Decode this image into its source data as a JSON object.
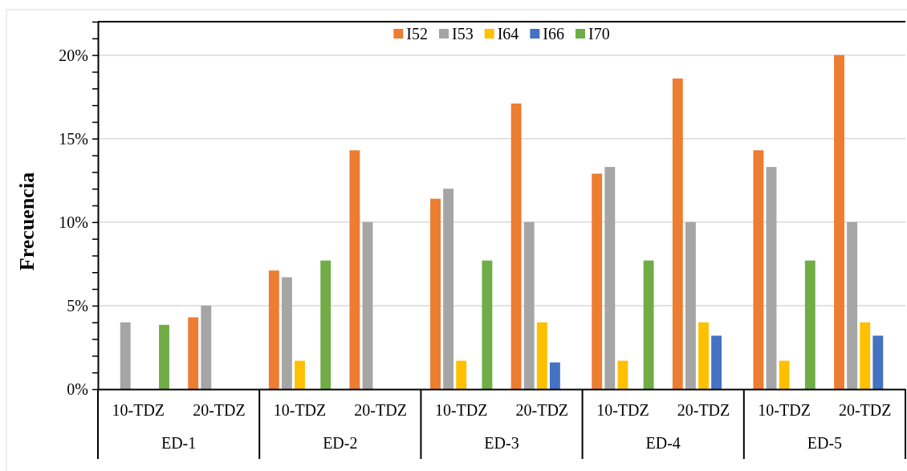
{
  "chart_data": {
    "type": "bar",
    "ylabel": "Frecuencia",
    "categories": [
      "10-TDZ",
      "20-TDZ",
      "10-TDZ",
      "20-TDZ",
      "10-TDZ",
      "20-TDZ",
      "10-TDZ",
      "20-TDZ",
      "10-TDZ",
      "20-TDZ"
    ],
    "annotations": [
      "ED-1",
      "ED-2",
      "ED-3",
      "ED-4",
      "ED-5"
    ],
    "series": [
      {
        "name": "I52",
        "color": "#ed7d31",
        "values": [
          null,
          4.3,
          7.1,
          14.3,
          11.4,
          17.1,
          12.9,
          18.6,
          14.3,
          20
        ]
      },
      {
        "name": "I53",
        "color": "#a5a5a5",
        "values": [
          4.0,
          5.0,
          6.7,
          10.0,
          12.0,
          10.0,
          13.3,
          10.0,
          13.3,
          10.0
        ]
      },
      {
        "name": "I64",
        "color": "#ffc000",
        "values": [
          null,
          null,
          1.7,
          null,
          1.7,
          4.0,
          1.7,
          4.0,
          1.7,
          4.0
        ]
      },
      {
        "name": "I66",
        "color": "#4472c4",
        "values": [
          null,
          null,
          null,
          null,
          null,
          1.6,
          null,
          3.2,
          null,
          3.2
        ]
      },
      {
        "name": "I70",
        "color": "#70ad47",
        "values": [
          3.85,
          null,
          7.7,
          null,
          7.7,
          null,
          7.7,
          null,
          7.7,
          null
        ]
      }
    ],
    "ylim": [
      0,
      22
    ],
    "yticks": [
      {
        "value": 0,
        "label": "0%"
      },
      {
        "value": 1,
        "label": null
      },
      {
        "value": 2,
        "label": null
      },
      {
        "value": 3,
        "label": null
      },
      {
        "value": 4,
        "label": null
      },
      {
        "value": 5,
        "label": "5%"
      },
      {
        "value": 6,
        "label": null
      },
      {
        "value": 7,
        "label": null
      },
      {
        "value": 8,
        "label": null
      },
      {
        "value": 9,
        "label": null
      },
      {
        "value": 10,
        "label": "10%"
      },
      {
        "value": 11,
        "label": null
      },
      {
        "value": 12,
        "label": null
      },
      {
        "value": 13,
        "label": null
      },
      {
        "value": 14,
        "label": null
      },
      {
        "value": 15,
        "label": "15%"
      },
      {
        "value": 16,
        "label": null
      },
      {
        "value": 17,
        "label": null
      },
      {
        "value": 18,
        "label": null
      },
      {
        "value": 19,
        "label": null
      },
      {
        "value": 20,
        "label": "20%"
      },
      {
        "value": 21,
        "label": null
      },
      {
        "value": 22,
        "label": null
      }
    ],
    "grid": "y",
    "legend": "top"
  }
}
